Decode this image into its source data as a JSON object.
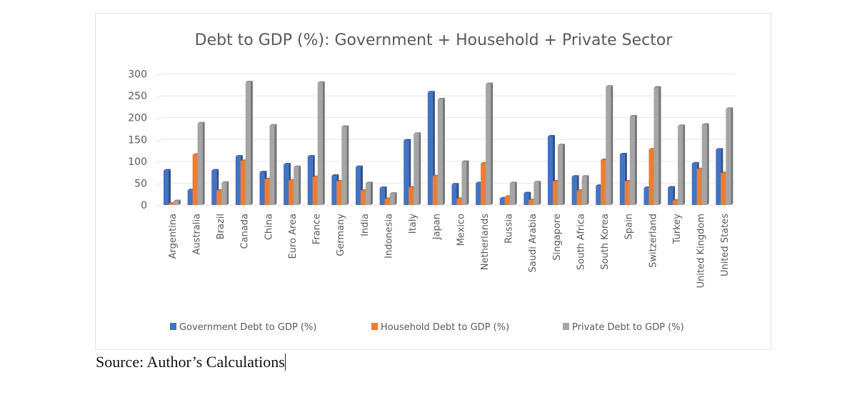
{
  "chart_data": {
    "type": "bar",
    "title": "Debt to GDP (%): Government + Household + Private Sector",
    "xlabel": "",
    "ylabel": "",
    "ylim": [
      0,
      300
    ],
    "yticks": [
      "0",
      "50",
      "100",
      "150",
      "200",
      "250",
      "300"
    ],
    "grid": true,
    "legend_position": "bottom",
    "categories": [
      "Argentina",
      "Australia",
      "Brazil",
      "Canada",
      "China",
      "Euro Area",
      "France",
      "Germany",
      "India",
      "Indonesia",
      "Italy",
      "Japan",
      "Mexico",
      "Netherlands",
      "Russia",
      "Saudi Arabia",
      "Singapore",
      "South Africa",
      "South Korea",
      "Spain",
      "Switzerland",
      "Turkey",
      "United Kingdom",
      "United States"
    ],
    "series": [
      {
        "name": "Government Debt to GDP (%)",
        "color": "#4472C4",
        "values": [
          79,
          34,
          79,
          111,
          75,
          93,
          111,
          67,
          87,
          39,
          148,
          258,
          47,
          50,
          15,
          27,
          157,
          65,
          44,
          116,
          39,
          40,
          95,
          127
        ]
      },
      {
        "name": "Household Debt to GDP (%)",
        "color": "#ED7D31",
        "values": [
          3,
          115,
          33,
          101,
          59,
          56,
          64,
          54,
          33,
          14,
          40,
          66,
          14,
          95,
          19,
          11,
          54,
          33,
          103,
          54,
          127,
          10,
          82,
          73
        ]
      },
      {
        "name": "Private Debt to GDP (%)",
        "color": "#A5A5A5",
        "values": [
          9,
          187,
          51,
          281,
          182,
          87,
          280,
          179,
          50,
          26,
          163,
          242,
          99,
          277,
          50,
          52,
          137,
          65,
          271,
          203,
          269,
          181,
          184,
          220
        ]
      }
    ]
  },
  "footer": {
    "source_text": "Source: Author’s Calculations"
  }
}
